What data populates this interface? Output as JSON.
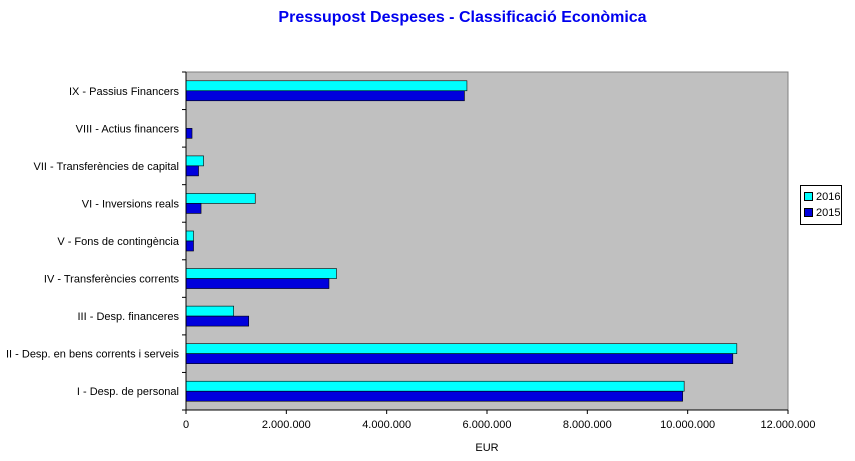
{
  "chart_data": {
    "type": "bar",
    "orientation": "horizontal",
    "title": "Pressupost Despeses - Classificació Econòmica",
    "xlabel": "EUR",
    "ylabel": "",
    "xlim": [
      0,
      12000000
    ],
    "x_ticks": [
      0,
      2000000,
      4000000,
      6000000,
      8000000,
      10000000,
      12000000
    ],
    "x_tick_labels": [
      "0",
      "2.000.000",
      "4.000.000",
      "6.000.000",
      "8.000.000",
      "10.000.000",
      "12.000.000"
    ],
    "categories": [
      "IX - Passius Financers",
      "VIII - Actius financers",
      "VII - Transferències de capital",
      "VI - Inversions reals",
      "V - Fons de contingència",
      "IV - Transferències corrents",
      "III - Desp. financeres",
      "II - Desp. en bens corrents i serveis",
      "I - Desp. de personal"
    ],
    "series": [
      {
        "name": "2016",
        "color": "#00ffff",
        "values": [
          5600000,
          0,
          350000,
          1380000,
          150000,
          3000000,
          950000,
          10980000,
          9930000
        ]
      },
      {
        "name": "2015",
        "color": "#0000dd",
        "values": [
          5550000,
          120000,
          250000,
          300000,
          150000,
          2850000,
          1250000,
          10900000,
          9900000
        ]
      }
    ],
    "plot_background": "#c0c0c0",
    "grid": false,
    "legend_position": "right"
  }
}
